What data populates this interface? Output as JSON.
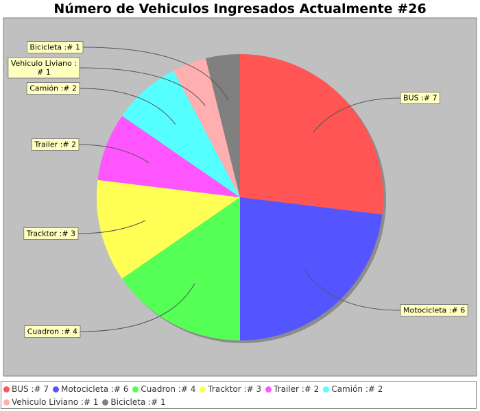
{
  "chart_data": {
    "type": "pie",
    "title": "Número de Vehiculos Ingresados Actualmente  #26",
    "slices": [
      {
        "name": "BUS",
        "value": 7,
        "label": "BUS :# 7",
        "legend": "BUS :# 7",
        "color": "#ff5555"
      },
      {
        "name": "Motocicleta",
        "value": 6,
        "label": "Motocicleta :# 6",
        "legend": "Motocicleta :# 6",
        "color": "#5555ff"
      },
      {
        "name": "Cuadron",
        "value": 4,
        "label": "Cuadron :# 4",
        "legend": "Cuadron :# 4",
        "color": "#55ff55"
      },
      {
        "name": "Tracktor",
        "value": 3,
        "label": "Tracktor :# 3",
        "legend": "Tracktor :# 3",
        "color": "#ffff55"
      },
      {
        "name": "Trailer",
        "value": 2,
        "label": "Trailer :# 2",
        "legend": "Trailer :# 2",
        "color": "#ff55ff"
      },
      {
        "name": "Camión",
        "value": 2,
        "label": "Camión :# 2",
        "legend": "Camión :# 2",
        "color": "#55ffff"
      },
      {
        "name": "Vehiculo Liviano",
        "value": 1,
        "label": "Vehiculo Liviano :\n# 1",
        "legend": "Vehiculo Liviano :# 1",
        "color": "#ffafaf"
      },
      {
        "name": "Bicicleta",
        "value": 1,
        "label": "Bicicleta :# 1",
        "legend": "Bicicleta :# 1",
        "color": "#808080"
      }
    ],
    "legend_position": "bottom",
    "plot_background": "#c0c0c0",
    "label_background": "#ffffc0"
  }
}
